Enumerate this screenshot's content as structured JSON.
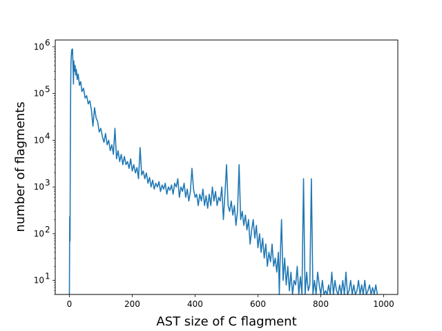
{
  "chart_data": {
    "type": "line",
    "xlabel": "AST size of C flagment",
    "ylabel": "number of flagments",
    "xlim": [
      -45,
      1045
    ],
    "ylim": [
      5,
      1400000
    ],
    "y_scale": "log",
    "grid": false,
    "legend": "none",
    "x_ticks": [
      0,
      200,
      400,
      600,
      800,
      1000
    ],
    "x_tick_labels": [
      "0",
      "200",
      "400",
      "600",
      "800",
      "1000"
    ],
    "y_ticks": [
      10,
      100,
      1000,
      10000,
      100000,
      1000000
    ],
    "y_tick_labels": [
      [
        "10",
        "1"
      ],
      [
        "10",
        "2"
      ],
      [
        "10",
        "3"
      ],
      [
        "10",
        "4"
      ],
      [
        "10",
        "5"
      ],
      [
        "10",
        "6"
      ]
    ],
    "series": [
      {
        "color": "#1f77b4",
        "points": [
          [
            0,
            5
          ],
          [
            1,
            230
          ],
          [
            2,
            70
          ],
          [
            3,
            8000
          ],
          [
            4,
            120000
          ],
          [
            5,
            450000
          ],
          [
            6,
            650000
          ],
          [
            7,
            800000
          ],
          [
            8,
            880000
          ],
          [
            9,
            700000
          ],
          [
            10,
            900000
          ],
          [
            11,
            500000
          ],
          [
            12,
            300000
          ],
          [
            13,
            160000
          ],
          [
            14,
            500000
          ],
          [
            16,
            300000
          ],
          [
            18,
            400000
          ],
          [
            20,
            250000
          ],
          [
            22,
            330000
          ],
          [
            25,
            200000
          ],
          [
            28,
            260000
          ],
          [
            32,
            150000
          ],
          [
            36,
            180000
          ],
          [
            40,
            110000
          ],
          [
            45,
            130000
          ],
          [
            50,
            80000
          ],
          [
            55,
            90000
          ],
          [
            60,
            60000
          ],
          [
            65,
            70000
          ],
          [
            70,
            45000
          ],
          [
            75,
            20000
          ],
          [
            80,
            50000
          ],
          [
            85,
            30000
          ],
          [
            90,
            25000
          ],
          [
            95,
            15000
          ],
          [
            100,
            18000
          ],
          [
            105,
            12000
          ],
          [
            110,
            9000
          ],
          [
            115,
            14000
          ],
          [
            120,
            8000
          ],
          [
            125,
            10000
          ],
          [
            130,
            6000
          ],
          [
            135,
            8000
          ],
          [
            140,
            5000
          ],
          [
            145,
            18000
          ],
          [
            150,
            4000
          ],
          [
            155,
            6000
          ],
          [
            160,
            3500
          ],
          [
            165,
            5000
          ],
          [
            170,
            3000
          ],
          [
            175,
            4500
          ],
          [
            180,
            3000
          ],
          [
            185,
            3500
          ],
          [
            190,
            2500
          ],
          [
            195,
            4000
          ],
          [
            200,
            2200
          ],
          [
            205,
            3000
          ],
          [
            210,
            2000
          ],
          [
            215,
            2600
          ],
          [
            220,
            1500
          ],
          [
            225,
            7000
          ],
          [
            230,
            1800
          ],
          [
            235,
            2200
          ],
          [
            240,
            1500
          ],
          [
            245,
            2000
          ],
          [
            250,
            1200
          ],
          [
            255,
            1600
          ],
          [
            260,
            1000
          ],
          [
            265,
            1400
          ],
          [
            270,
            900
          ],
          [
            275,
            1200
          ],
          [
            280,
            1000
          ],
          [
            285,
            1300
          ],
          [
            290,
            800
          ],
          [
            295,
            1100
          ],
          [
            300,
            900
          ],
          [
            305,
            1200
          ],
          [
            310,
            700
          ],
          [
            315,
            1000
          ],
          [
            320,
            850
          ],
          [
            325,
            1100
          ],
          [
            330,
            700
          ],
          [
            335,
            1200
          ],
          [
            340,
            1000
          ],
          [
            345,
            1500
          ],
          [
            350,
            600
          ],
          [
            355,
            1000
          ],
          [
            360,
            800
          ],
          [
            365,
            1200
          ],
          [
            370,
            600
          ],
          [
            375,
            900
          ],
          [
            380,
            500
          ],
          [
            385,
            800
          ],
          [
            390,
            2500
          ],
          [
            395,
            900
          ],
          [
            400,
            600
          ],
          [
            405,
            700
          ],
          [
            410,
            400
          ],
          [
            415,
            700
          ],
          [
            420,
            500
          ],
          [
            425,
            900
          ],
          [
            430,
            400
          ],
          [
            435,
            650
          ],
          [
            440,
            350
          ],
          [
            445,
            700
          ],
          [
            450,
            400
          ],
          [
            455,
            1000
          ],
          [
            460,
            500
          ],
          [
            465,
            800
          ],
          [
            470,
            400
          ],
          [
            475,
            600
          ],
          [
            480,
            500
          ],
          [
            485,
            1000
          ],
          [
            490,
            200
          ],
          [
            495,
            700
          ],
          [
            500,
            3000
          ],
          [
            505,
            400
          ],
          [
            510,
            300
          ],
          [
            515,
            500
          ],
          [
            520,
            250
          ],
          [
            525,
            400
          ],
          [
            530,
            150
          ],
          [
            535,
            300
          ],
          [
            540,
            3000
          ],
          [
            545,
            200
          ],
          [
            550,
            300
          ],
          [
            555,
            150
          ],
          [
            560,
            250
          ],
          [
            565,
            120
          ],
          [
            570,
            200
          ],
          [
            575,
            60
          ],
          [
            580,
            120
          ],
          [
            585,
            200
          ],
          [
            590,
            80
          ],
          [
            595,
            150
          ],
          [
            600,
            50
          ],
          [
            605,
            100
          ],
          [
            610,
            40
          ],
          [
            615,
            80
          ],
          [
            620,
            30
          ],
          [
            625,
            60
          ],
          [
            630,
            20
          ],
          [
            635,
            40
          ],
          [
            640,
            25
          ],
          [
            645,
            60
          ],
          [
            650,
            20
          ],
          [
            655,
            30
          ],
          [
            660,
            15
          ],
          [
            665,
            40
          ],
          [
            668,
            5
          ],
          [
            670,
            20
          ],
          [
            675,
            200
          ],
          [
            680,
            10
          ],
          [
            685,
            30
          ],
          [
            690,
            8
          ],
          [
            695,
            20
          ],
          [
            700,
            6
          ],
          [
            705,
            15
          ],
          [
            710,
            5
          ],
          [
            715,
            10
          ],
          [
            720,
            8
          ],
          [
            725,
            20
          ],
          [
            730,
            5
          ],
          [
            735,
            12
          ],
          [
            740,
            5
          ],
          [
            745,
            1500
          ],
          [
            750,
            5
          ],
          [
            755,
            15
          ],
          [
            760,
            6
          ],
          [
            765,
            8
          ],
          [
            770,
            1500
          ],
          [
            775,
            5
          ],
          [
            780,
            10
          ],
          [
            785,
            5
          ],
          [
            790,
            15
          ],
          [
            795,
            8
          ],
          [
            800,
            5
          ],
          [
            805,
            10
          ],
          [
            810,
            5
          ],
          [
            815,
            6
          ],
          [
            820,
            5
          ],
          [
            825,
            8
          ],
          [
            830,
            5
          ],
          [
            835,
            15
          ],
          [
            840,
            5
          ],
          [
            845,
            10
          ],
          [
            850,
            6
          ],
          [
            855,
            5
          ],
          [
            860,
            8
          ],
          [
            865,
            5
          ],
          [
            870,
            10
          ],
          [
            875,
            5
          ],
          [
            880,
            15
          ],
          [
            885,
            5
          ],
          [
            890,
            6
          ],
          [
            895,
            10
          ],
          [
            900,
            5
          ],
          [
            905,
            8
          ],
          [
            910,
            5
          ],
          [
            915,
            6
          ],
          [
            920,
            10
          ],
          [
            925,
            5
          ],
          [
            930,
            8
          ],
          [
            935,
            5
          ],
          [
            940,
            10
          ],
          [
            945,
            5
          ],
          [
            950,
            6
          ],
          [
            955,
            8
          ],
          [
            960,
            5
          ],
          [
            965,
            7
          ],
          [
            970,
            5
          ],
          [
            975,
            8
          ],
          [
            980,
            5
          ]
        ]
      }
    ]
  }
}
